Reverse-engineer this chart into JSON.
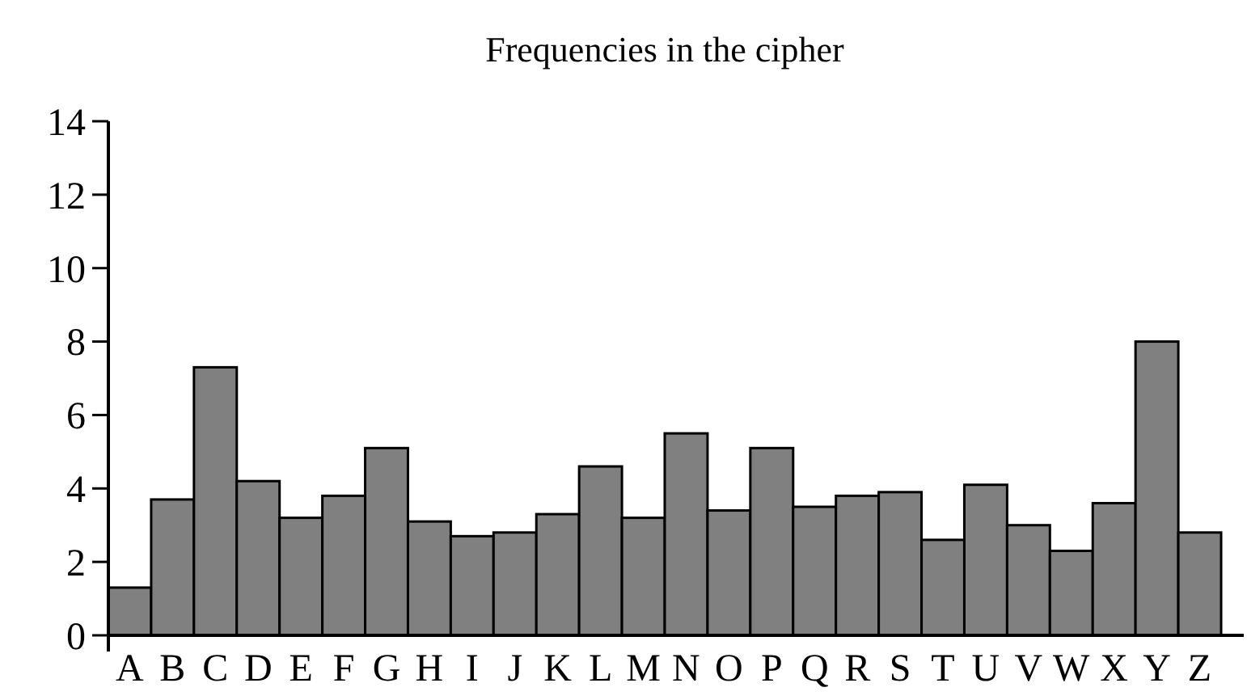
{
  "chart_data": {
    "type": "bar",
    "title": "Frequencies in the cipher",
    "categories": [
      "A",
      "B",
      "C",
      "D",
      "E",
      "F",
      "G",
      "H",
      "I",
      "J",
      "K",
      "L",
      "M",
      "N",
      "O",
      "P",
      "Q",
      "R",
      "S",
      "T",
      "U",
      "V",
      "W",
      "X",
      "Y",
      "Z"
    ],
    "values": [
      1.3,
      3.7,
      7.3,
      4.2,
      3.2,
      3.8,
      5.1,
      3.1,
      2.7,
      2.8,
      3.3,
      4.6,
      3.2,
      5.5,
      3.4,
      5.1,
      3.5,
      3.8,
      3.9,
      2.6,
      4.1,
      3.0,
      2.3,
      3.6,
      8.0,
      2.8
    ],
    "color": "#808080",
    "ylim": [
      0,
      14
    ],
    "yticks": [
      0,
      2,
      4,
      6,
      8,
      10,
      12,
      14
    ],
    "grid": false
  }
}
